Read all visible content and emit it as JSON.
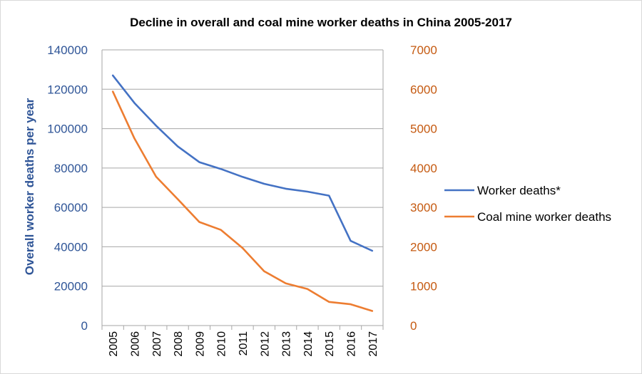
{
  "chart_data": {
    "type": "line",
    "title": "Decline in overall and coal mine worker deaths in China 2005-2017",
    "xlabel": "",
    "ylabel": "Overall worker deaths per year",
    "ylabel_right": "",
    "ylim": [
      0,
      140000
    ],
    "ylim_right": [
      0,
      7000
    ],
    "yticks": [
      "0",
      "20000",
      "40000",
      "60000",
      "80000",
      "100000",
      "120000",
      "140000"
    ],
    "yticks_right": [
      "0",
      "1000",
      "2000",
      "3000",
      "4000",
      "5000",
      "6000",
      "7000"
    ],
    "categories": [
      "2005",
      "2006",
      "2007",
      "2008",
      "2009",
      "2010",
      "2011",
      "2012",
      "2013",
      "2014",
      "2015",
      "2016",
      "2017"
    ],
    "grid": true,
    "legend_position": "right",
    "series": [
      {
        "name": "Worker deaths*",
        "axis": "left",
        "color": "#4472C4",
        "values": [
          127000,
          113000,
          101500,
          91000,
          83000,
          79500,
          75500,
          72000,
          69500,
          68000,
          66000,
          43000,
          38000
        ]
      },
      {
        "name": "Coal mine worker deaths",
        "axis": "right",
        "color": "#ED7D31",
        "values": [
          5940,
          4750,
          3780,
          3210,
          2630,
          2430,
          1970,
          1380,
          1070,
          930,
          600,
          540,
          370
        ]
      }
    ],
    "colors": {
      "left_axis_text": "#2F5597",
      "right_axis_text": "#C55A11",
      "grid": "#A6A6A6"
    }
  }
}
